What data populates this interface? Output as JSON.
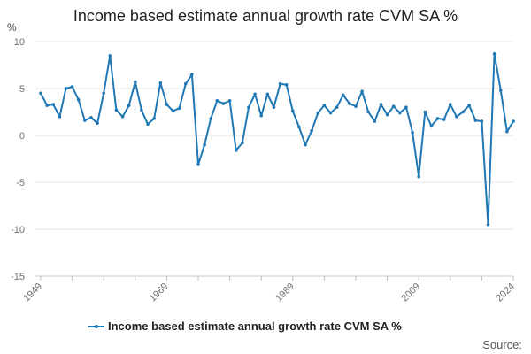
{
  "chart_data": {
    "type": "line",
    "title": "Income based estimate annual growth rate CVM SA %",
    "ylabel": "%",
    "xlabel": "",
    "ylim": [
      -15,
      10
    ],
    "yticks": [
      10,
      5,
      0,
      -5,
      -10,
      -15
    ],
    "xticks": [
      "1949",
      "1969",
      "1989",
      "2009",
      "2024"
    ],
    "x": [
      1949,
      1950,
      1951,
      1952,
      1953,
      1954,
      1955,
      1956,
      1957,
      1958,
      1959,
      1960,
      1961,
      1962,
      1963,
      1964,
      1965,
      1966,
      1967,
      1968,
      1969,
      1970,
      1971,
      1972,
      1973,
      1974,
      1975,
      1976,
      1977,
      1978,
      1979,
      1980,
      1981,
      1982,
      1983,
      1984,
      1985,
      1986,
      1987,
      1988,
      1989,
      1990,
      1991,
      1992,
      1993,
      1994,
      1995,
      1996,
      1997,
      1998,
      1999,
      2000,
      2001,
      2002,
      2003,
      2004,
      2005,
      2006,
      2007,
      2008,
      2009,
      2010,
      2011,
      2012,
      2013,
      2014,
      2015,
      2016,
      2017,
      2018,
      2019,
      2020,
      2021,
      2022,
      2023,
      2024
    ],
    "series": [
      {
        "name": "Income based estimate annual growth rate CVM SA %",
        "color": "#1f77b4",
        "values": [
          4.5,
          3.2,
          3.3,
          2.0,
          5.0,
          5.2,
          3.8,
          1.6,
          1.9,
          1.3,
          4.5,
          8.5,
          2.7,
          2.0,
          3.2,
          5.7,
          2.7,
          1.2,
          1.8,
          5.6,
          3.3,
          2.6,
          2.9,
          5.5,
          6.5,
          -3.1,
          -1.0,
          1.8,
          3.7,
          3.4,
          3.7,
          -1.6,
          -0.8,
          3.0,
          4.4,
          2.1,
          4.4,
          3.0,
          5.5,
          5.4,
          2.6,
          0.9,
          -1.0,
          0.5,
          2.4,
          3.2,
          2.4,
          3.0,
          4.3,
          3.4,
          3.1,
          4.7,
          2.5,
          1.5,
          3.3,
          2.2,
          3.1,
          2.4,
          3.0,
          0.3,
          -4.4,
          2.5,
          1.0,
          1.8,
          1.7,
          3.3,
          2.0,
          2.5,
          3.2,
          1.6,
          1.5,
          -9.5,
          8.7,
          4.8,
          0.4,
          1.5
        ]
      }
    ],
    "legend": "bottom-center",
    "grid": true
  },
  "source_label": "Source:",
  "colors": {
    "line": "#1f77b4",
    "grid": "#e6e6e6",
    "zero_line": "#d9d9d9"
  }
}
